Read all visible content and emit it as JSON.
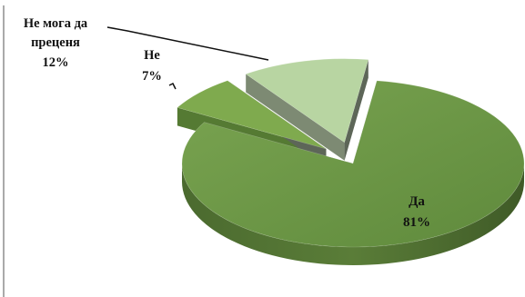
{
  "chart_data": {
    "type": "pie",
    "three_d": true,
    "exploded": true,
    "title": "",
    "slices": [
      {
        "name": "Да",
        "value": 81,
        "label": "81%",
        "color": "#6f9648",
        "side_color": "#4e6e30"
      },
      {
        "name": "Не",
        "value": 7,
        "label": "7%",
        "color": "#7faa4e",
        "side_color": "#557a33"
      },
      {
        "name": "Не мога да преценя",
        "value": 12,
        "label": "12%",
        "color": "#b8d5a2",
        "side_color": "#7d8a73"
      }
    ],
    "labels_text": {
      "da_name": "Да",
      "da_pct": "81%",
      "ne_name": "Не",
      "ne_pct": "7%",
      "unk_line1": "Не мога да",
      "unk_line2": "преценя",
      "unk_pct": "12%"
    }
  }
}
